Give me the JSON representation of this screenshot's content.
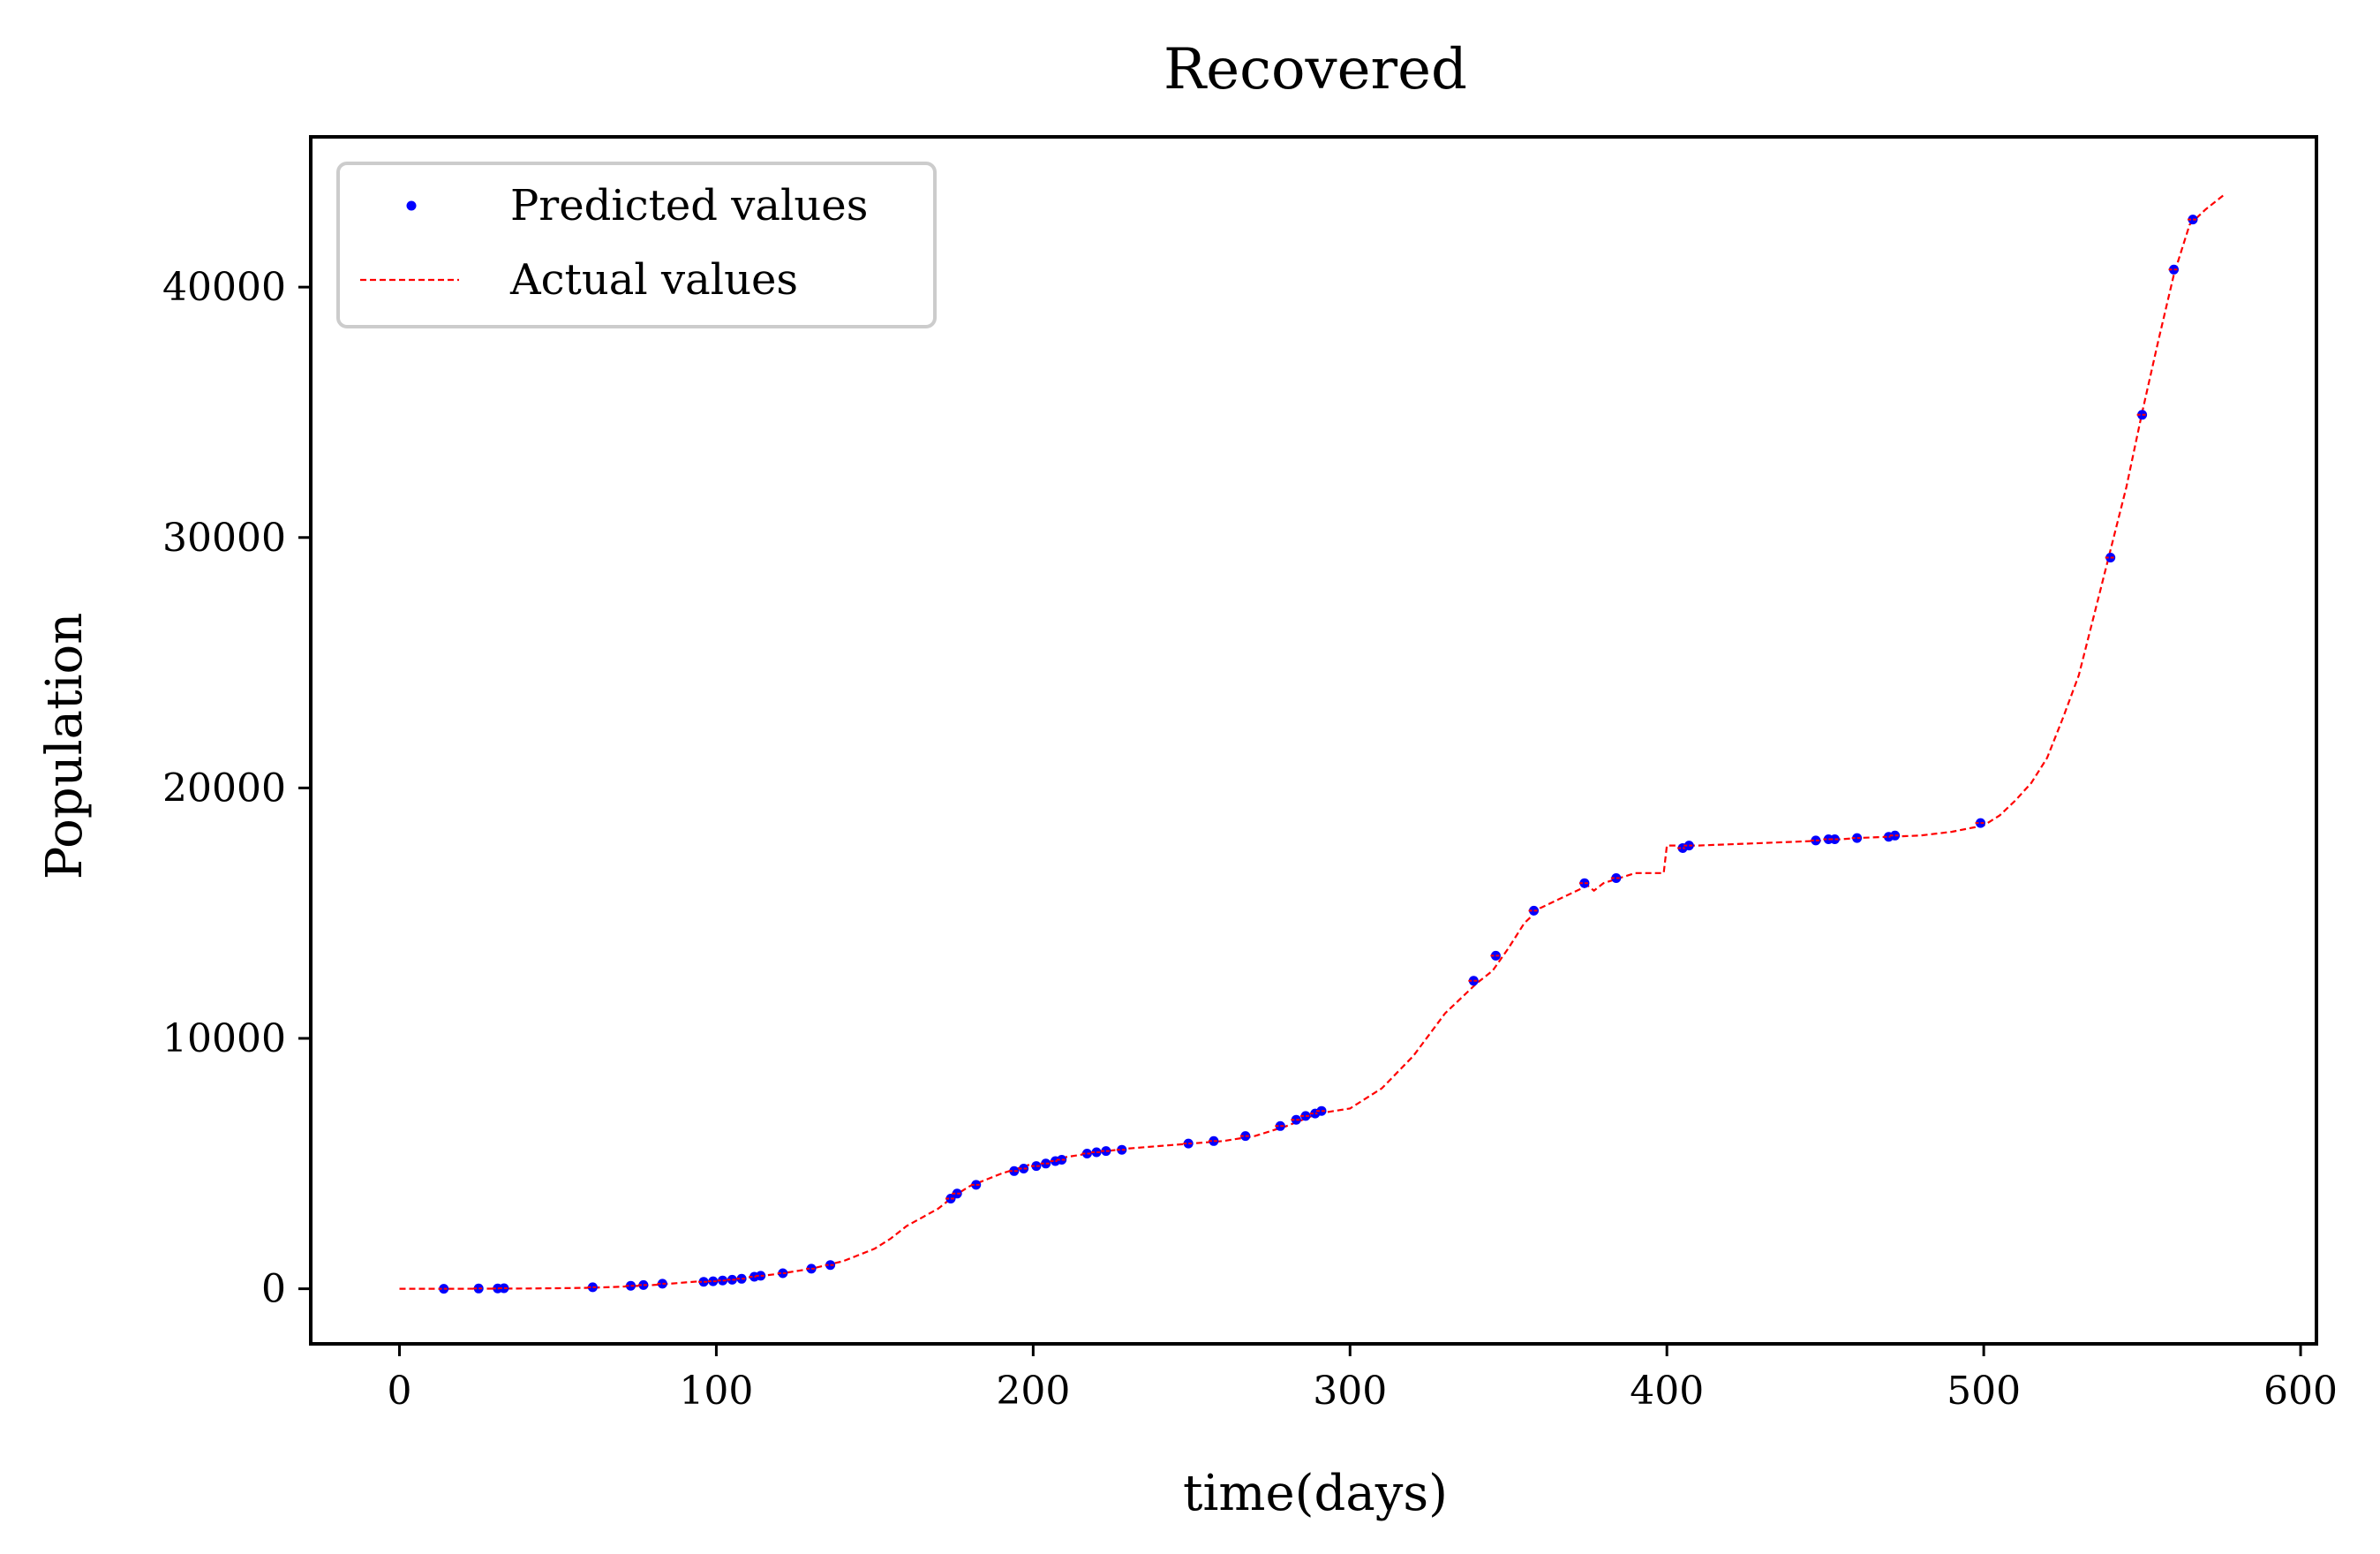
{
  "chart_data": {
    "type": "line",
    "title": "Recovered",
    "xlabel": "time(days)",
    "ylabel": "Population",
    "xlim": [
      -28,
      605
    ],
    "ylim": [
      -2200,
      46000
    ],
    "xticks": [
      0,
      100,
      200,
      300,
      400,
      500,
      600
    ],
    "yticks": [
      0,
      10000,
      20000,
      30000,
      40000
    ],
    "grid": false,
    "legend_position": "upper-left",
    "colors": {
      "predicted": "#0000ff",
      "actual": "#ff0000",
      "frame": "#000000"
    },
    "legend": [
      {
        "label": "Predicted values",
        "marker": "dot",
        "color": "#0000ff"
      },
      {
        "label": "Actual values",
        "marker": "dashed-line",
        "color": "#ff0000"
      }
    ],
    "series": [
      {
        "name": "Actual values",
        "style": "dashed",
        "x": [
          0,
          10,
          20,
          30,
          40,
          50,
          60,
          70,
          80,
          90,
          100,
          110,
          120,
          130,
          140,
          150,
          155,
          160,
          170,
          175,
          180,
          190,
          200,
          210,
          220,
          230,
          240,
          250,
          260,
          270,
          280,
          290,
          300,
          310,
          320,
          330,
          340,
          345,
          350,
          355,
          360,
          370,
          375,
          377,
          380,
          385,
          390,
          399,
          400,
          410,
          420,
          430,
          440,
          450,
          460,
          470,
          480,
          490,
          500,
          505,
          510,
          515,
          520,
          525,
          530,
          535,
          540,
          545,
          550,
          555,
          560,
          565,
          570,
          576
        ],
        "y": [
          0,
          0,
          0,
          5,
          10,
          20,
          40,
          80,
          150,
          250,
          350,
          450,
          600,
          800,
          1100,
          1600,
          2000,
          2500,
          3200,
          3700,
          4100,
          4600,
          5000,
          5250,
          5450,
          5600,
          5700,
          5800,
          5900,
          6100,
          6500,
          7000,
          7200,
          8000,
          9300,
          11000,
          12200,
          12700,
          13600,
          14600,
          15200,
          15800,
          16100,
          15900,
          16200,
          16400,
          16600,
          16600,
          17700,
          17700,
          17750,
          17800,
          17850,
          17900,
          18000,
          18050,
          18100,
          18250,
          18500,
          18900,
          19500,
          20200,
          21200,
          22800,
          24500,
          27000,
          29500,
          32000,
          35000,
          37800,
          40500,
          42500,
          43100,
          43700
        ]
      },
      {
        "name": "Predicted values",
        "style": "points",
        "x": [
          14,
          25,
          31,
          33,
          61,
          73,
          77,
          83,
          96,
          99,
          102,
          105,
          108,
          112,
          114,
          121,
          130,
          136,
          174,
          176,
          182,
          194,
          197,
          201,
          204,
          207,
          209,
          217,
          220,
          223,
          228,
          249,
          257,
          267,
          278,
          283,
          286,
          289,
          291,
          339,
          346,
          358,
          374,
          384,
          405,
          407,
          447,
          451,
          453,
          460,
          470,
          472,
          499,
          540,
          550,
          560,
          566
        ],
        "y": [
          0,
          10,
          15,
          20,
          60,
          120,
          150,
          200,
          280,
          300,
          330,
          360,
          400,
          480,
          520,
          620,
          800,
          950,
          3600,
          3800,
          4150,
          4700,
          4800,
          4900,
          5000,
          5100,
          5150,
          5400,
          5450,
          5500,
          5550,
          5800,
          5900,
          6100,
          6500,
          6750,
          6900,
          7000,
          7100,
          12300,
          13300,
          15100,
          16200,
          16400,
          17600,
          17700,
          17900,
          17950,
          17950,
          18000,
          18050,
          18100,
          18600,
          29200,
          34900,
          40700,
          42700
        ]
      }
    ]
  }
}
